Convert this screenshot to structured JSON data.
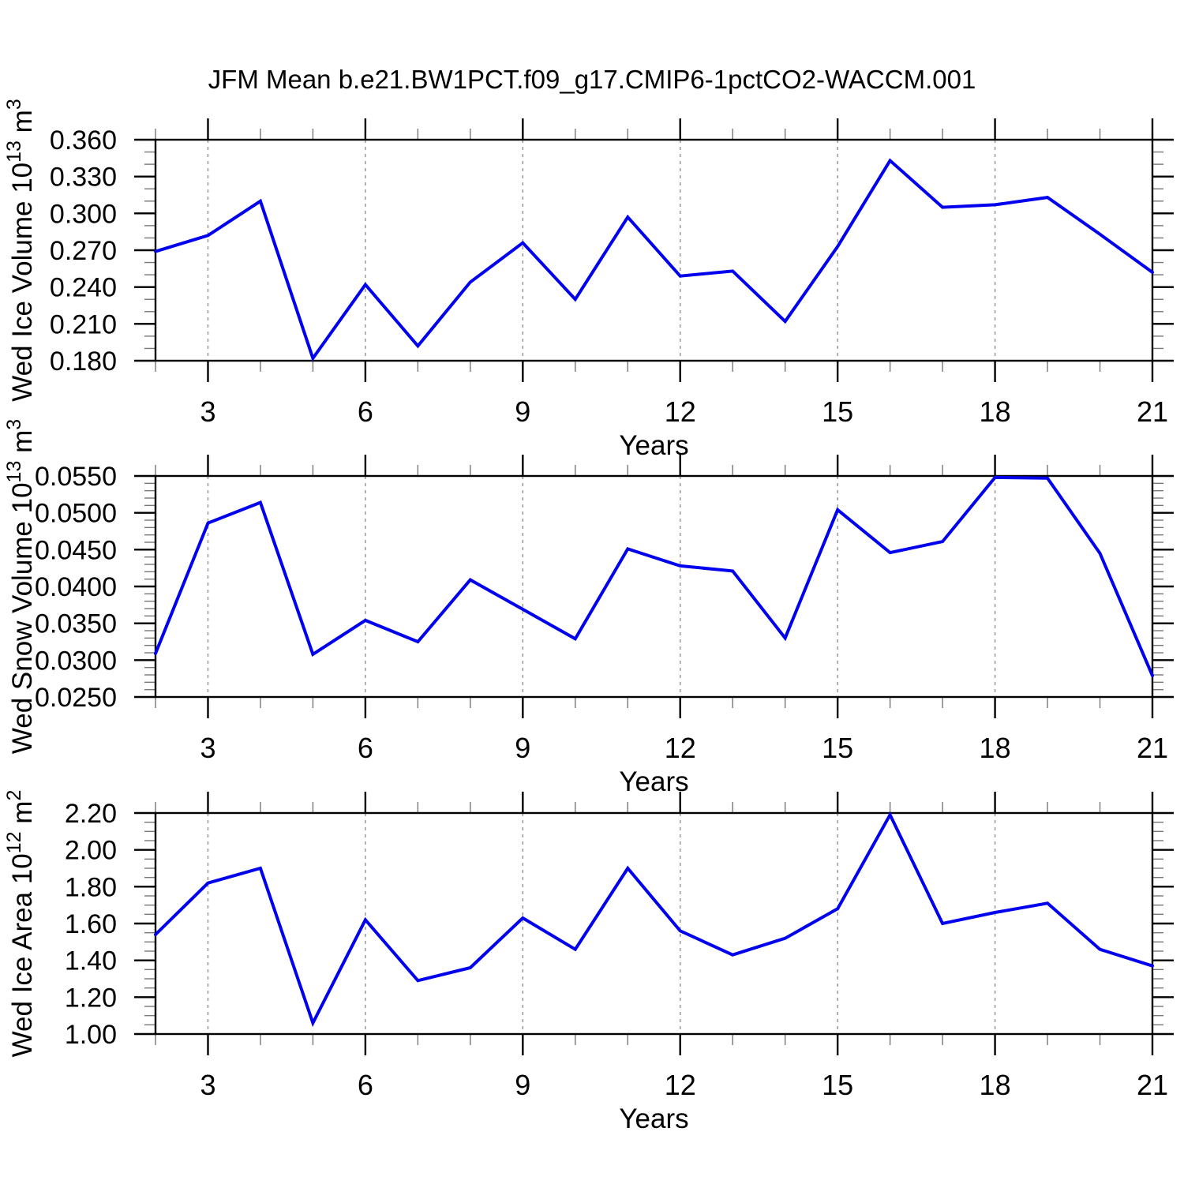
{
  "title": "JFM Mean b.e21.BW1PCT.f09_g17.CMIP6-1pctCO2-WACCM.001",
  "line_color": "#0000EE",
  "gridline_color": "#999999",
  "frame_color": "#000000",
  "minor_tick_color": "#777777",
  "chart_data": [
    {
      "type": "line",
      "name": "wed-ice-volume",
      "ylabel_plain": "Wed Ice Volume 10^13 m^3",
      "ylabel_parts": [
        {
          "t": "Wed Ice Volume 10"
        },
        {
          "sup": "13"
        },
        {
          "t": " m"
        },
        {
          "sup": "3"
        }
      ],
      "xlabel": "Years",
      "x": [
        2,
        3,
        4,
        5,
        6,
        7,
        8,
        9,
        10,
        11,
        12,
        13,
        14,
        15,
        16,
        17,
        18,
        19,
        20,
        21
      ],
      "values": [
        0.269,
        0.282,
        0.31,
        0.182,
        0.242,
        0.192,
        0.244,
        0.276,
        0.23,
        0.297,
        0.249,
        0.253,
        0.212,
        0.273,
        0.343,
        0.305,
        0.307,
        0.313,
        0.283,
        0.252
      ],
      "xlim": [
        2,
        21
      ],
      "ylim": [
        0.18,
        0.36
      ],
      "x_tick_values": [
        3,
        6,
        9,
        12,
        15,
        18,
        21
      ],
      "x_tick_labels": [
        "3",
        "6",
        "9",
        "12",
        "15",
        "18",
        "21"
      ],
      "x_minor_step": 1,
      "y_tick_values": [
        0.36,
        0.33,
        0.3,
        0.27,
        0.24,
        0.21,
        0.18
      ],
      "y_tick_labels": [
        "0.360",
        "0.330",
        "0.300",
        "0.270",
        "0.240",
        "0.210",
        "0.180"
      ],
      "y_major_step": 0.03,
      "y_minor_step": 0.01,
      "grid_years": [
        3,
        6,
        9,
        12,
        15,
        18
      ],
      "grid_on": true,
      "legend": "none"
    },
    {
      "type": "line",
      "name": "wed-snow-volume",
      "ylabel_plain": "Wed Snow Volume 10^13 m^3",
      "ylabel_parts": [
        {
          "t": "Wed Snow Volume 10"
        },
        {
          "sup": "13"
        },
        {
          "t": " m"
        },
        {
          "sup": "3"
        }
      ],
      "xlabel": "Years",
      "x": [
        2,
        3,
        4,
        5,
        6,
        7,
        8,
        9,
        10,
        11,
        12,
        13,
        14,
        15,
        16,
        17,
        18,
        19,
        20,
        21
      ],
      "values": [
        0.0309,
        0.0486,
        0.0514,
        0.0308,
        0.0354,
        0.0325,
        0.0409,
        0.0369,
        0.0329,
        0.0451,
        0.0428,
        0.0421,
        0.033,
        0.0504,
        0.0446,
        0.0461,
        0.0548,
        0.0547,
        0.0445,
        0.0279
      ],
      "xlim": [
        2,
        21
      ],
      "ylim": [
        0.025,
        0.055
      ],
      "x_tick_values": [
        3,
        6,
        9,
        12,
        15,
        18,
        21
      ],
      "x_tick_labels": [
        "3",
        "6",
        "9",
        "12",
        "15",
        "18",
        "21"
      ],
      "x_minor_step": 1,
      "y_tick_values": [
        0.055,
        0.05,
        0.045,
        0.04,
        0.035,
        0.03,
        0.025
      ],
      "y_tick_labels": [
        "0.0550",
        "0.0500",
        "0.0450",
        "0.0400",
        "0.0350",
        "0.0300",
        "0.0250"
      ],
      "y_major_step": 0.005,
      "y_minor_step": 0.001,
      "grid_years": [
        3,
        6,
        9,
        12,
        15,
        18
      ],
      "grid_on": true,
      "legend": "none"
    },
    {
      "type": "line",
      "name": "wed-ice-area",
      "ylabel_plain": "Wed Ice Area 10^12 m^2",
      "ylabel_parts": [
        {
          "t": "Wed Ice Area 10"
        },
        {
          "sup": "12"
        },
        {
          "t": " m"
        },
        {
          "sup": "2"
        }
      ],
      "xlabel": "Years",
      "x": [
        2,
        3,
        4,
        5,
        6,
        7,
        8,
        9,
        10,
        11,
        12,
        13,
        14,
        15,
        16,
        17,
        18,
        19,
        20,
        21
      ],
      "values": [
        1.54,
        1.82,
        1.9,
        1.06,
        1.62,
        1.29,
        1.36,
        1.63,
        1.46,
        1.9,
        1.56,
        1.43,
        1.52,
        1.68,
        2.19,
        1.6,
        1.66,
        1.71,
        1.46,
        1.37
      ],
      "xlim": [
        2,
        21
      ],
      "ylim": [
        1.0,
        2.2
      ],
      "x_tick_values": [
        3,
        6,
        9,
        12,
        15,
        18,
        21
      ],
      "x_tick_labels": [
        "3",
        "6",
        "9",
        "12",
        "15",
        "18",
        "21"
      ],
      "x_minor_step": 1,
      "y_tick_values": [
        2.2,
        2.0,
        1.8,
        1.6,
        1.4,
        1.2,
        1.0
      ],
      "y_tick_labels": [
        "2.20",
        "2.00",
        "1.80",
        "1.60",
        "1.40",
        "1.20",
        "1.00"
      ],
      "y_major_step": 0.2,
      "y_minor_step": 0.05,
      "grid_years": [
        3,
        6,
        9,
        12,
        15,
        18
      ],
      "grid_on": true,
      "legend": "none"
    }
  ]
}
